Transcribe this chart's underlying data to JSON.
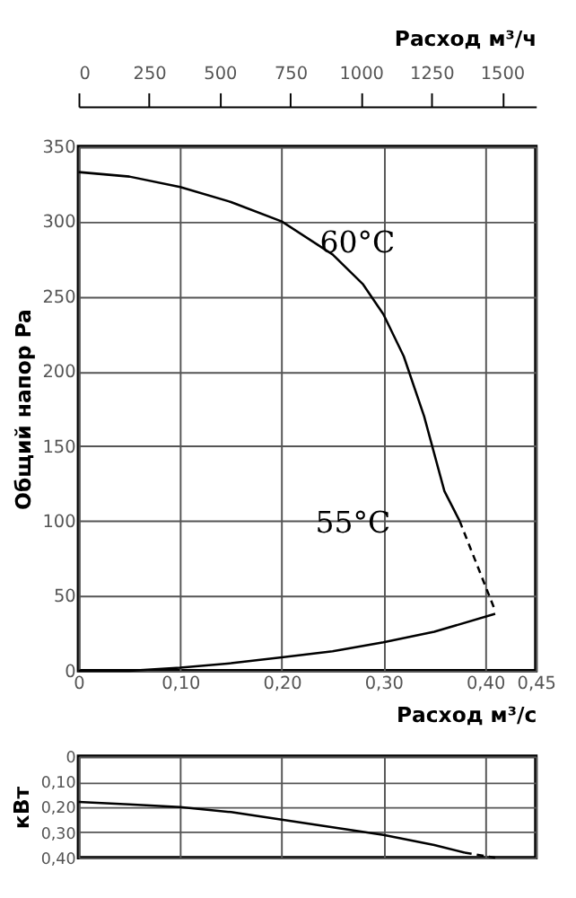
{
  "chart_data": [
    {
      "type": "line",
      "xlabel": "Расход м³/с",
      "ylabel": "Общий напор Pa",
      "x2label": "Расход м³/ч",
      "xlim": [
        0,
        0.45
      ],
      "xticks": [
        0,
        {
          "value": 0.1,
          "label": "0,10"
        },
        {
          "value": 0.2,
          "label": "0,20"
        },
        {
          "value": 0.3,
          "label": "0,30"
        },
        {
          "value": 0.4,
          "label": "0,40"
        },
        {
          "value": 0.45,
          "label": "0,45"
        }
      ],
      "ylim": [
        0,
        350
      ],
      "yticks": [
        0,
        50,
        100,
        150,
        200,
        250,
        300,
        350
      ],
      "x2lim": [
        0,
        1620
      ],
      "x2ticks": [
        0,
        250,
        500,
        750,
        1000,
        1250,
        1500
      ],
      "grid": true,
      "legend": false,
      "marker": "none",
      "series": [
        {
          "color": "#000000",
          "line_style": "solid",
          "x": [
            0,
            0.05,
            0.1,
            0.15,
            0.2,
            0.25,
            0.28,
            0.3,
            0.32,
            0.34,
            0.35,
            0.36,
            0.375
          ],
          "values": [
            333,
            330,
            323,
            313,
            300,
            278,
            258,
            238,
            210,
            170,
            145,
            120,
            100
          ]
        },
        {
          "color": "#000000",
          "line_style": "dashed",
          "x": [
            0.375,
            0.41
          ],
          "values": [
            100,
            40
          ]
        },
        {
          "color": "#000000",
          "line_style": "solid",
          "x": [
            0,
            0.05,
            0.1,
            0.15,
            0.2,
            0.25,
            0.3,
            0.35,
            0.41
          ],
          "values": [
            0,
            0,
            2,
            5,
            9,
            13,
            19,
            26,
            38
          ]
        }
      ],
      "annotations": [
        "60°C",
        "55°C"
      ]
    },
    {
      "type": "line",
      "ylabel": "кВт",
      "xlim": [
        0,
        0.45
      ],
      "xticks": [
        0,
        0.1,
        0.2,
        0.3,
        0.4,
        0.45
      ],
      "ylim": [
        0.4,
        0
      ],
      "yticks": [
        0,
        {
          "value": 0.1,
          "label": "0,10"
        },
        {
          "value": 0.2,
          "label": "0,20"
        },
        {
          "value": 0.3,
          "label": "0,30"
        },
        {
          "value": 0.4,
          "label": "0,40"
        }
      ],
      "tick_labels": "y",
      "grid": true,
      "legend": false,
      "marker": "none",
      "series": [
        {
          "color": "#000000",
          "line_style": "solid",
          "x": [
            0,
            0.05,
            0.1,
            0.15,
            0.2,
            0.25,
            0.3,
            0.35,
            0.38
          ],
          "values": [
            0.18,
            0.19,
            0.2,
            0.22,
            0.25,
            0.28,
            0.31,
            0.35,
            0.38
          ]
        },
        {
          "color": "#000000",
          "line_style": "dashed",
          "x": [
            0.38,
            0.41
          ],
          "values": [
            0.38,
            0.4
          ]
        }
      ]
    }
  ]
}
